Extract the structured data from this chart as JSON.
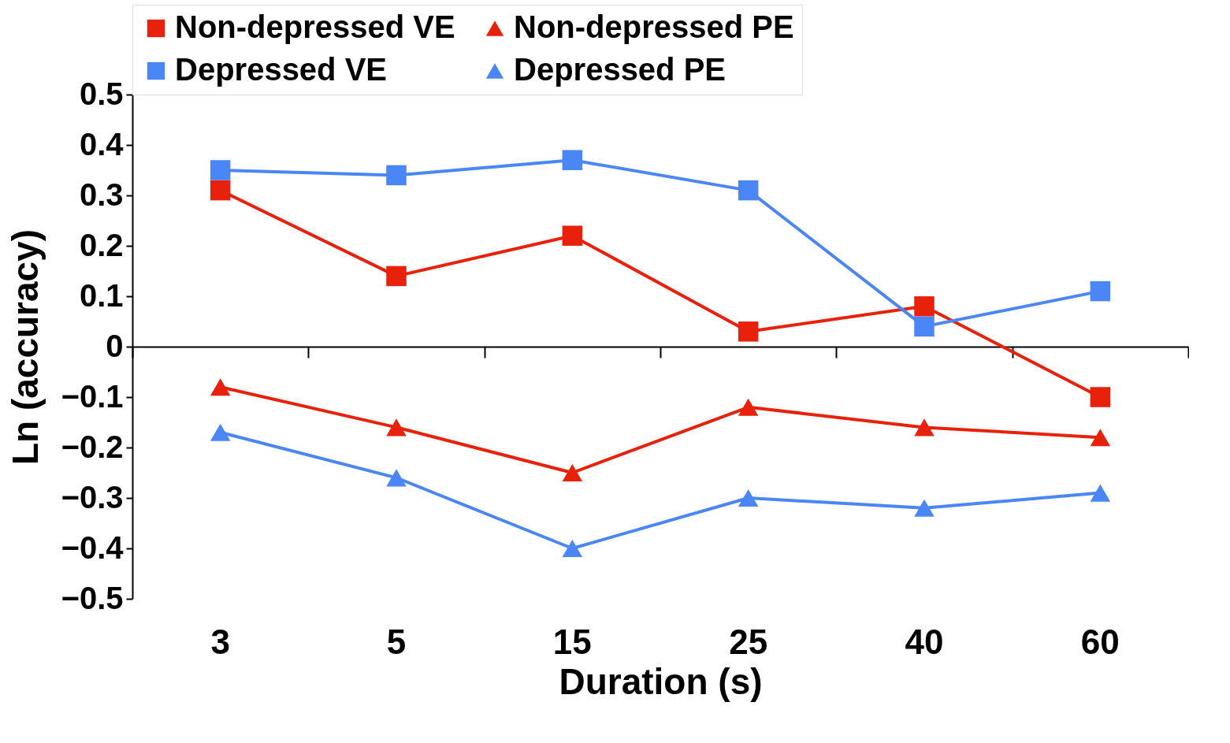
{
  "chart_data": {
    "type": "line",
    "xlabel": "Duration (s)",
    "ylabel": "Ln (accuracy)",
    "categories": [
      "3",
      "5",
      "15",
      "25",
      "40",
      "60"
    ],
    "ylim": [
      -0.5,
      0.5
    ],
    "yticks": [
      -0.5,
      -0.4,
      -0.3,
      -0.2,
      -0.1,
      0,
      0.1,
      0.2,
      0.3,
      0.4,
      0.5
    ],
    "legend": "top",
    "series": [
      {
        "name": "Non-depressed VE",
        "color": "#e8210c",
        "marker": "square",
        "values": [
          0.31,
          0.14,
          0.22,
          0.03,
          0.08,
          -0.1
        ]
      },
      {
        "name": "Non-depressed PE",
        "color": "#e8210c",
        "marker": "triangle",
        "values": [
          -0.08,
          -0.16,
          -0.25,
          -0.12,
          -0.16,
          -0.18
        ]
      },
      {
        "name": "Depressed VE",
        "color": "#4a86f5",
        "marker": "square",
        "values": [
          0.35,
          0.34,
          0.37,
          0.31,
          0.04,
          0.11
        ]
      },
      {
        "name": "Depressed PE",
        "color": "#4a86f5",
        "marker": "triangle",
        "values": [
          -0.17,
          -0.26,
          -0.4,
          -0.3,
          -0.32,
          -0.29
        ]
      }
    ]
  }
}
